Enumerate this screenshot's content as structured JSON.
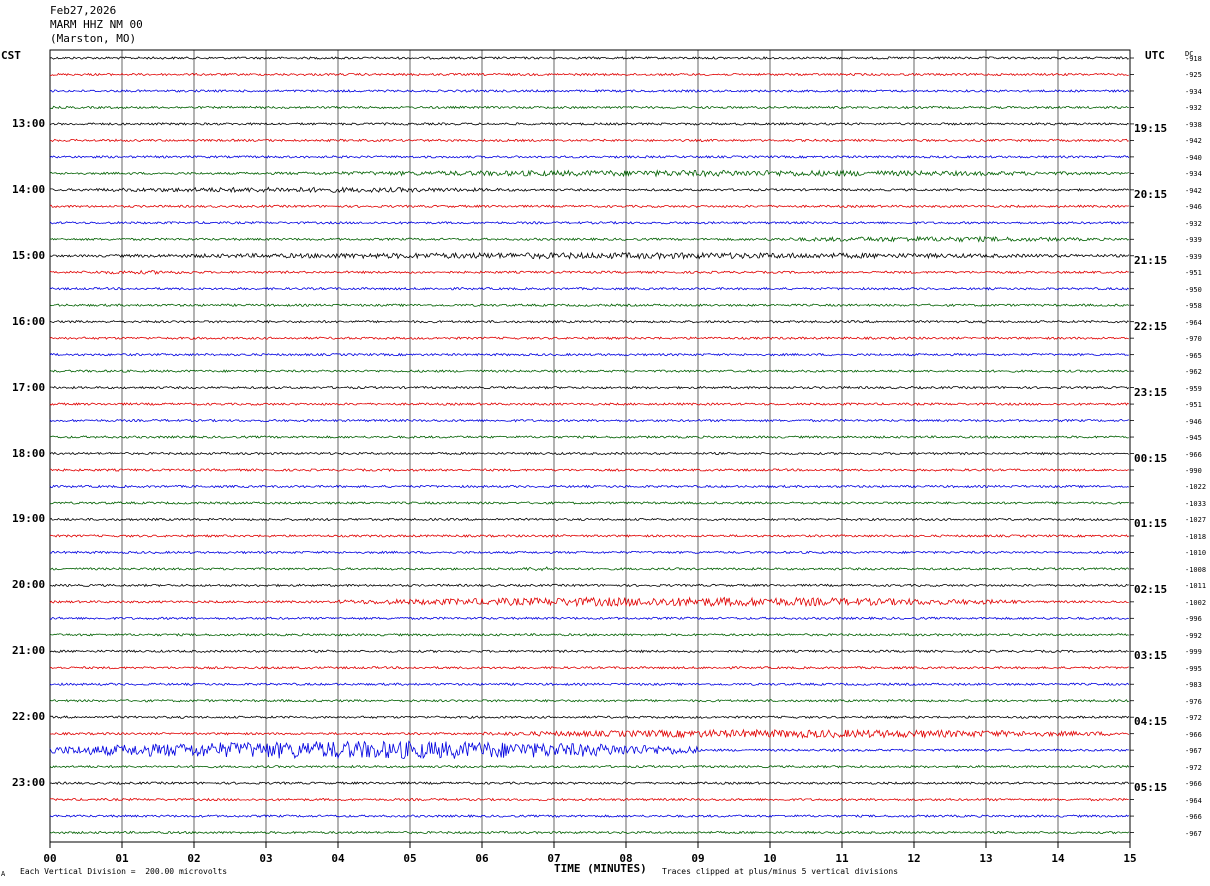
{
  "header": {
    "date": "Feb27,2026",
    "station": "MARM HHZ NM 00",
    "location": "(Marston, MO)"
  },
  "left_axis_title": "CST",
  "right_axis_title": "UTC",
  "dc_title": "DC",
  "footer": {
    "scale_mark": "A",
    "scale": "Each Vertical Division =  200.00 microvolts",
    "clip": "Traces clipped at plus/minus 5 vertical divisions"
  },
  "chart_data": {
    "type": "line",
    "title": "",
    "xlabel": "TIME (MINUTES)",
    "x_ticks": [
      "00",
      "01",
      "02",
      "03",
      "04",
      "05",
      "06",
      "07",
      "08",
      "09",
      "10",
      "11",
      "12",
      "13",
      "14",
      "15"
    ],
    "xlim": [
      0,
      15
    ],
    "grid": true,
    "trace_colors": [
      "#000000",
      "#e00000",
      "#0000e0",
      "#006000"
    ],
    "left_time_labels": [
      {
        "row": 4,
        "label": "13:00"
      },
      {
        "row": 8,
        "label": "14:00"
      },
      {
        "row": 12,
        "label": "15:00"
      },
      {
        "row": 16,
        "label": "16:00"
      },
      {
        "row": 20,
        "label": "17:00"
      },
      {
        "row": 24,
        "label": "18:00"
      },
      {
        "row": 28,
        "label": "19:00"
      },
      {
        "row": 32,
        "label": "20:00"
      },
      {
        "row": 36,
        "label": "21:00"
      },
      {
        "row": 40,
        "label": "22:00"
      },
      {
        "row": 44,
        "label": "23:00"
      }
    ],
    "right_time_labels": [
      {
        "row": 4,
        "label": "19:15"
      },
      {
        "row": 8,
        "label": "20:15"
      },
      {
        "row": 12,
        "label": "21:15"
      },
      {
        "row": 16,
        "label": "22:15"
      },
      {
        "row": 20,
        "label": "23:15"
      },
      {
        "row": 24,
        "label": "00:15"
      },
      {
        "row": 28,
        "label": "01:15"
      },
      {
        "row": 32,
        "label": "02:15"
      },
      {
        "row": 36,
        "label": "03:15"
      },
      {
        "row": 40,
        "label": "04:15"
      },
      {
        "row": 44,
        "label": "05:15"
      }
    ],
    "dc_offsets": [
      "-918",
      "-925",
      "-934",
      "-932",
      "-938",
      "-942",
      "-940",
      "-934",
      "-942",
      "-946",
      "-932",
      "-939",
      "-939",
      "-951",
      "-950",
      "-958",
      "-964",
      "-970",
      "-965",
      "-962",
      "-959",
      "-951",
      "-946",
      "-945",
      "-966",
      "-990",
      "-1022",
      "-1033",
      "-1027",
      "-1018",
      "-1010",
      "-1008",
      "-1011",
      "-1002",
      "-996",
      "-992",
      "-999",
      "-995",
      "-983",
      "-976",
      "-972",
      "-966",
      "-967",
      "-972",
      "-966",
      "-964",
      "-966",
      "-967"
    ],
    "events": [
      {
        "row": 7,
        "start_min": 3.0,
        "end_min": 15.0,
        "amplitude": 3
      },
      {
        "row": 8,
        "start_min": 0.0,
        "end_min": 7.0,
        "amplitude": 2.5
      },
      {
        "row": 11,
        "start_min": 9.5,
        "end_min": 15.0,
        "amplitude": 2.5
      },
      {
        "row": 12,
        "start_min": 0.5,
        "end_min": 15.0,
        "amplitude": 3
      },
      {
        "row": 13,
        "start_min": 0.0,
        "end_min": 2.5,
        "amplitude": 1.8
      },
      {
        "row": 31,
        "start_min": 6.4,
        "end_min": 7.2,
        "amplitude": 2.0
      },
      {
        "row": 33,
        "start_min": 4.0,
        "end_min": 13.5,
        "amplitude": 4.5
      },
      {
        "row": 41,
        "start_min": 6.0,
        "end_min": 15.0,
        "amplitude": 4.0
      },
      {
        "row": 42,
        "start_min": 0.0,
        "end_min": 9.0,
        "amplitude": 9.0
      }
    ]
  }
}
